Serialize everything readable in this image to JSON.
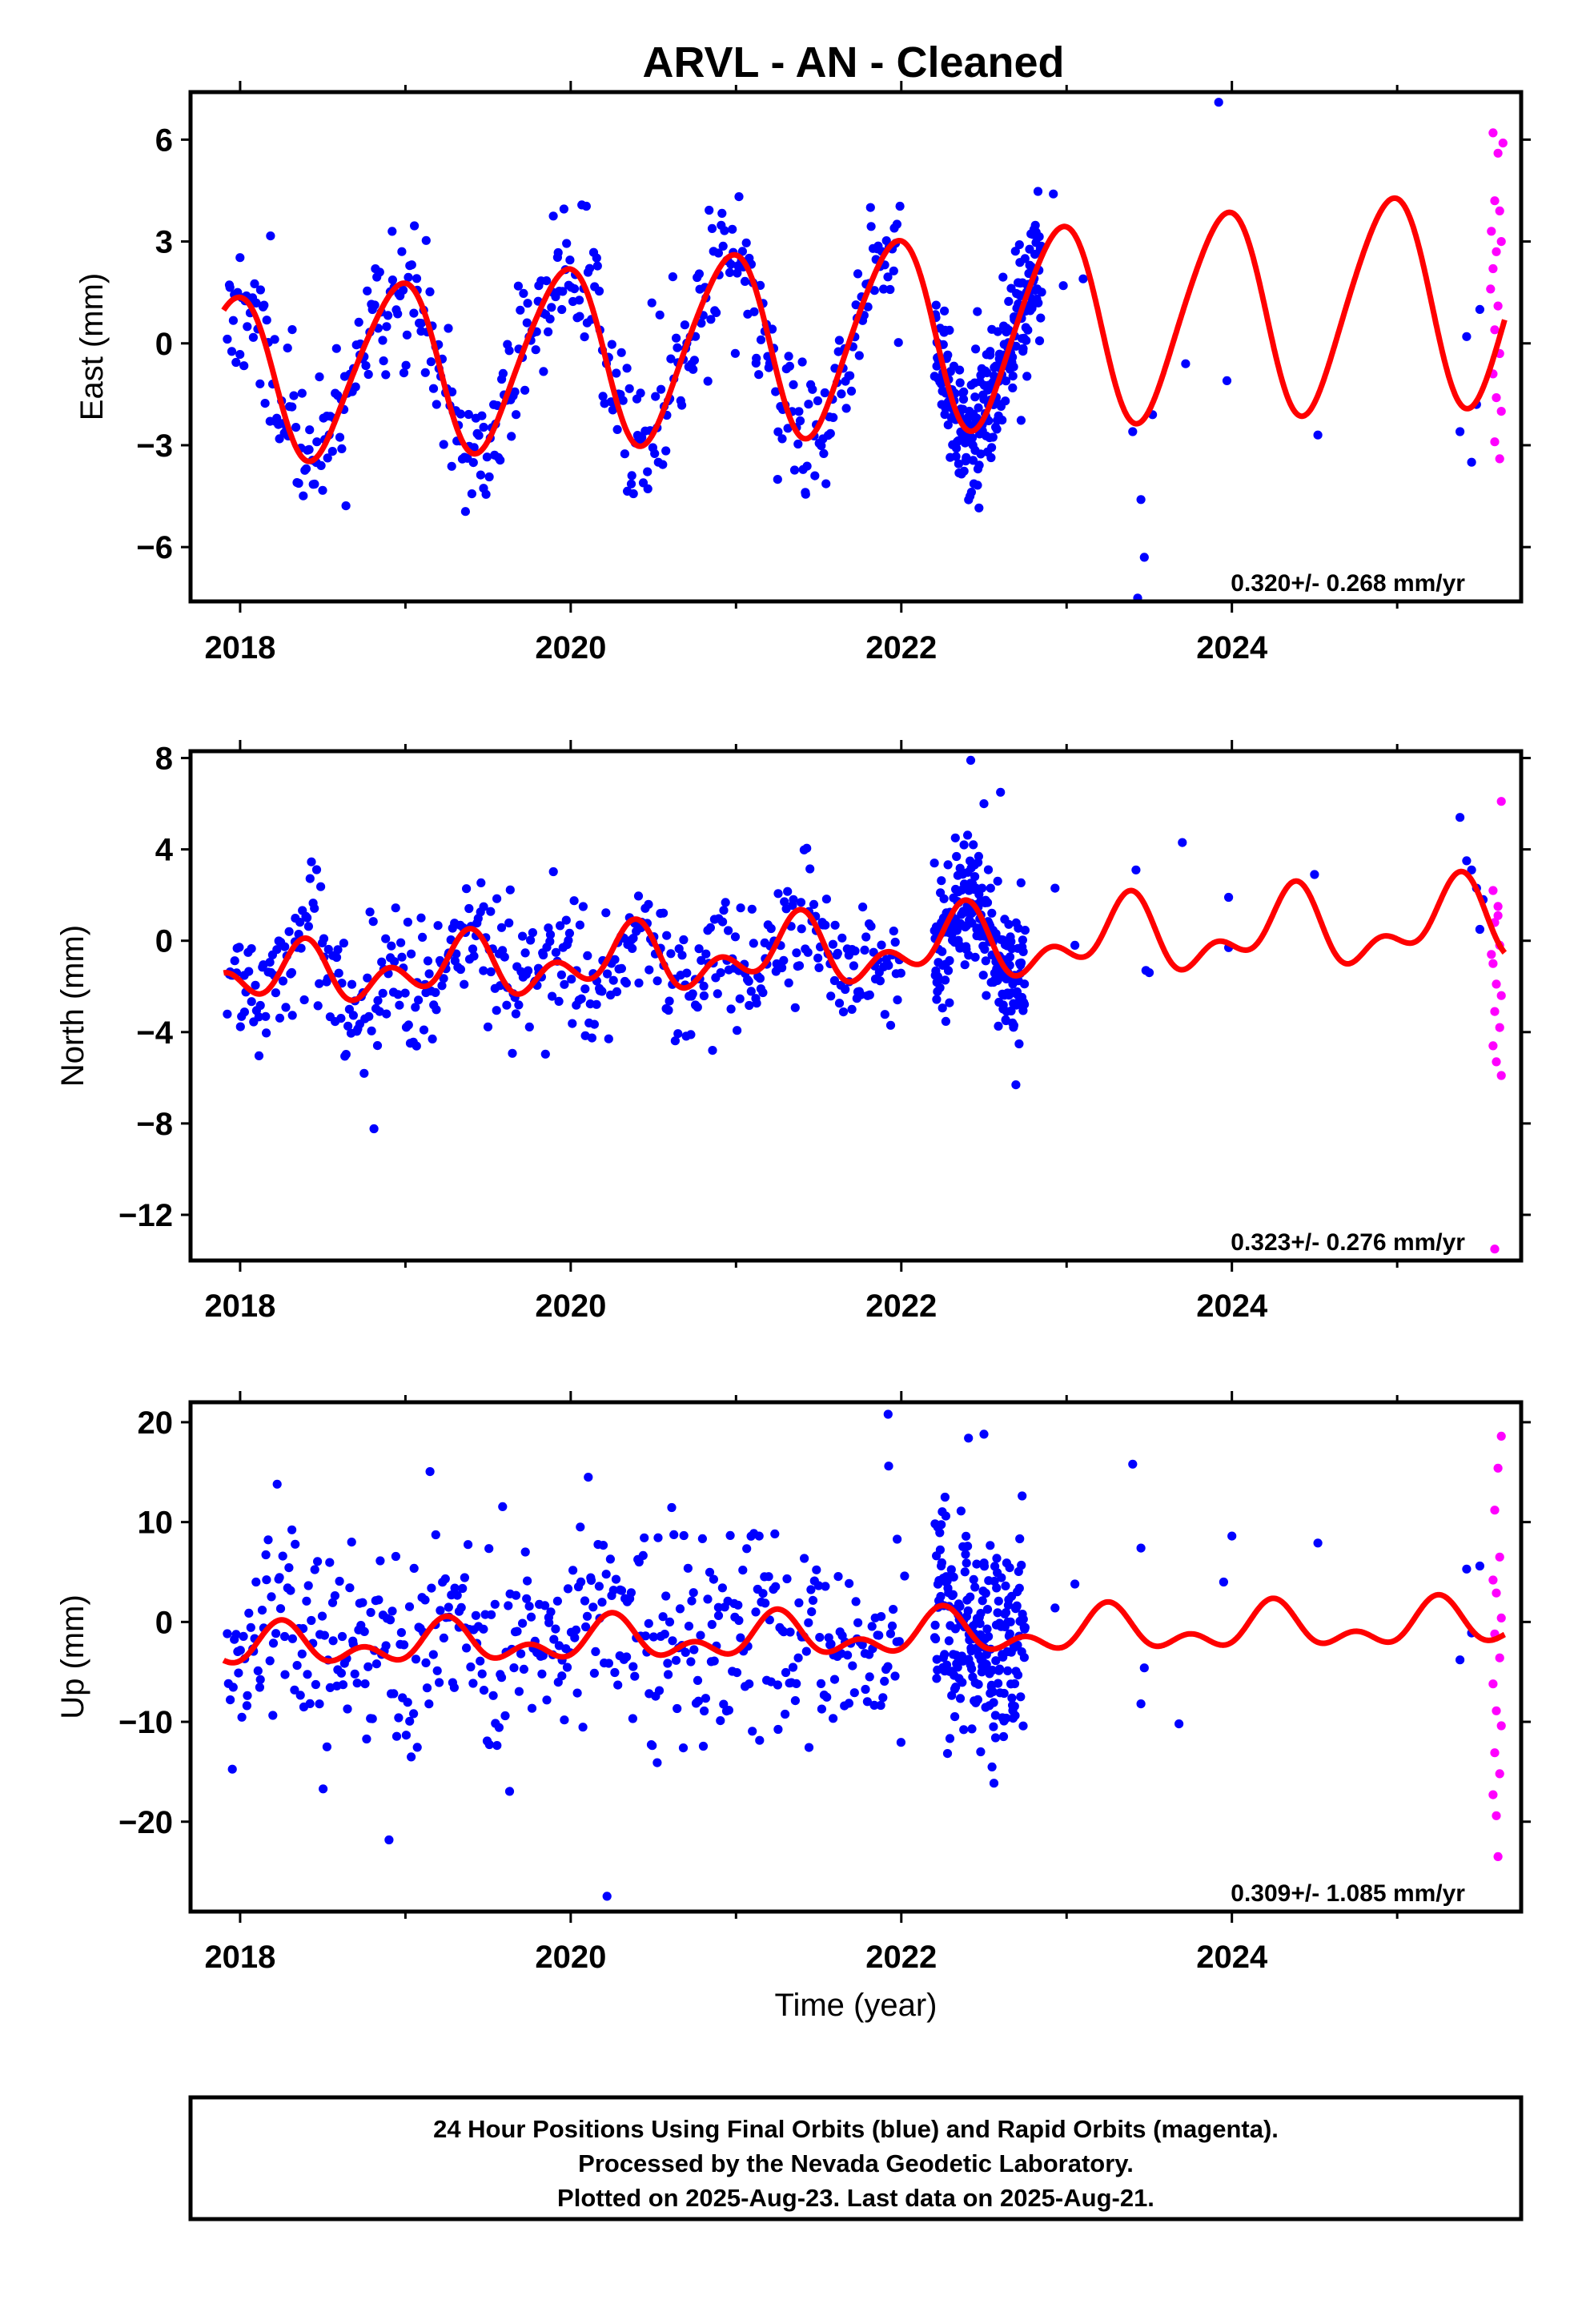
{
  "title": "ARVL  - AN - Cleaned",
  "xlabel": "Time (year)",
  "x_ticks": [
    "2018",
    "2020",
    "2022",
    "2024"
  ],
  "notes": [
    "24 Hour Positions Using Final Orbits (blue) and Rapid Orbits (magenta).",
    "Processed by the Nevada Geodetic Laboratory.",
    "Plotted on 2025-Aug-23. Last data on 2025-Aug-21."
  ],
  "colors": {
    "final": "#0000ff",
    "rapid": "#ff00ff",
    "model": "#ff0000",
    "frame": "#000000"
  },
  "chart_data": [
    {
      "type": "scatter",
      "ylabel": "East (mm)",
      "rate_text": "0.320+/- 0.268 mm/yr",
      "xlim": [
        2017.7,
        2025.75
      ],
      "ylim": [
        -7.6,
        7.4
      ],
      "y_ticks": [
        6,
        3,
        0,
        -3,
        -6
      ],
      "y_tick_labels": [
        "6",
        "3",
        "0",
        "−3",
        "−6"
      ],
      "model": {
        "offset": 0.1,
        "trend": 0.32,
        "annual_amp_start": 2.4,
        "annual_amp_growth": 0.1,
        "annual_phase_peak": 2018.95,
        "semi_amp": 0.3,
        "semi_phase_peak": 2018.1
      },
      "scatter": {
        "noise": 1.05,
        "outlier_rate": 0.01,
        "seed": 11
      },
      "final_segments": [
        [
          2017.92,
          2022.0,
          3.2
        ],
        [
          2022.2,
          2022.85,
          0.9
        ]
      ],
      "final_extra": [
        [
          2022.92,
          4.4
        ],
        [
          2022.98,
          1.7
        ],
        [
          2023.1,
          1.9
        ],
        [
          2023.4,
          -2.6
        ],
        [
          2023.45,
          -4.6
        ],
        [
          2023.47,
          -6.3
        ],
        [
          2023.43,
          -7.5
        ],
        [
          2023.52,
          -2.1
        ],
        [
          2023.72,
          -0.6
        ],
        [
          2023.92,
          7.1
        ],
        [
          2023.97,
          -1.1
        ],
        [
          2024.52,
          -2.7
        ],
        [
          2025.38,
          -2.6
        ],
        [
          2025.42,
          0.2
        ],
        [
          2025.45,
          -3.5
        ],
        [
          2025.48,
          -1.8
        ],
        [
          2025.5,
          1.0
        ]
      ],
      "rapid_points": [
        [
          2025.58,
          6.2
        ],
        [
          2025.61,
          5.6
        ],
        [
          2025.59,
          4.2
        ],
        [
          2025.62,
          3.9
        ],
        [
          2025.57,
          3.3
        ],
        [
          2025.6,
          2.7
        ],
        [
          2025.63,
          3.0
        ],
        [
          2025.58,
          2.2
        ],
        [
          2025.61,
          1.1
        ],
        [
          2025.59,
          0.4
        ],
        [
          2025.62,
          -0.3
        ],
        [
          2025.58,
          -0.9
        ],
        [
          2025.6,
          -1.6
        ],
        [
          2025.63,
          -2.0
        ],
        [
          2025.59,
          -2.9
        ],
        [
          2025.62,
          -3.4
        ],
        [
          2025.64,
          5.9
        ],
        [
          2025.565,
          1.6
        ]
      ]
    },
    {
      "type": "scatter",
      "ylabel": "North (mm)",
      "rate_text": "0.323+/- 0.276 mm/yr",
      "xlim": [
        2017.7,
        2025.75
      ],
      "ylim": [
        -14.0,
        8.3
      ],
      "y_ticks": [
        8,
        4,
        0,
        -4,
        -8,
        -12
      ],
      "y_tick_labels": [
        "8",
        "4",
        "0",
        "−4",
        "−8",
        "−12"
      ],
      "model": {
        "offset": -0.5,
        "trend": 0.32,
        "annual_amp_start": 0.7,
        "annual_amp_growth": 0.1,
        "annual_phase_peak": 2018.35,
        "semi_amp": 0.9,
        "semi_phase_peak": 2018.4
      },
      "scatter": {
        "noise": 1.4,
        "outlier_rate": 0.01,
        "seed": 23
      },
      "final_segments": [
        [
          2017.92,
          2022.0,
          3.2
        ],
        [
          2022.2,
          2022.75,
          0.9
        ]
      ],
      "final_extra": [
        [
          2022.2,
          3.4
        ],
        [
          2022.42,
          7.9
        ],
        [
          2022.5,
          6.0
        ],
        [
          2022.6,
          6.5
        ],
        [
          2022.93,
          2.3
        ],
        [
          2023.05,
          -0.2
        ],
        [
          2023.42,
          3.1
        ],
        [
          2023.48,
          -1.3
        ],
        [
          2023.5,
          -1.4
        ],
        [
          2023.7,
          4.3
        ],
        [
          2023.98,
          1.9
        ],
        [
          2023.98,
          -0.3
        ],
        [
          2024.5,
          2.9
        ],
        [
          2025.38,
          5.4
        ],
        [
          2025.42,
          3.5
        ],
        [
          2025.45,
          3.1
        ],
        [
          2025.48,
          2.3
        ],
        [
          2025.5,
          0.5
        ],
        [
          2025.52,
          1.8
        ]
      ],
      "rapid_points": [
        [
          2025.63,
          6.1
        ],
        [
          2025.58,
          2.2
        ],
        [
          2025.61,
          1.5
        ],
        [
          2025.59,
          0.8
        ],
        [
          2025.62,
          -0.2
        ],
        [
          2025.58,
          -1.0
        ],
        [
          2025.6,
          -1.9
        ],
        [
          2025.63,
          -2.4
        ],
        [
          2025.59,
          -3.1
        ],
        [
          2025.62,
          -3.8
        ],
        [
          2025.58,
          -4.6
        ],
        [
          2025.6,
          -5.3
        ],
        [
          2025.63,
          -5.9
        ],
        [
          2025.57,
          -0.6
        ],
        [
          2025.61,
          1.1
        ],
        [
          2025.59,
          -13.5
        ]
      ]
    },
    {
      "type": "scatter",
      "ylabel": "Up (mm)",
      "rate_text": "0.309+/- 1.085 mm/yr",
      "xlim": [
        2017.7,
        2025.75
      ],
      "ylim": [
        -29.0,
        22.0
      ],
      "y_ticks": [
        20,
        10,
        0,
        -10,
        -20
      ],
      "y_tick_labels": [
        "20",
        "10",
        "0",
        "−10",
        "−20"
      ],
      "model": {
        "offset": -1.5,
        "trend": 0.31,
        "annual_amp_start": 1.4,
        "annual_amp_growth": 0.05,
        "annual_phase_peak": 2018.25,
        "semi_amp": 1.3,
        "semi_phase_peak": 2018.25
      },
      "scatter": {
        "noise": 5.2,
        "outlier_rate": 0.02,
        "seed": 37
      },
      "final_segments": [
        [
          2017.92,
          2022.0,
          3.2
        ],
        [
          2022.2,
          2022.75,
          0.9
        ]
      ],
      "final_extra": [
        [
          2021.92,
          20.8
        ],
        [
          2022.02,
          4.6
        ],
        [
          2022.22,
          9.5
        ],
        [
          2022.5,
          18.8
        ],
        [
          2022.48,
          -13.0
        ],
        [
          2022.57,
          -11.6
        ],
        [
          2022.93,
          1.4
        ],
        [
          2023.05,
          3.8
        ],
        [
          2023.4,
          15.8
        ],
        [
          2023.45,
          7.4
        ],
        [
          2023.47,
          -4.6
        ],
        [
          2023.45,
          -8.2
        ],
        [
          2023.68,
          -10.2
        ],
        [
          2023.95,
          4.0
        ],
        [
          2024.0,
          8.6
        ],
        [
          2024.52,
          7.9
        ],
        [
          2025.38,
          -3.8
        ],
        [
          2025.42,
          5.3
        ],
        [
          2025.45,
          -1.1
        ],
        [
          2025.5,
          5.6
        ]
      ],
      "rapid_points": [
        [
          2025.63,
          18.6
        ],
        [
          2025.61,
          15.4
        ],
        [
          2025.59,
          11.2
        ],
        [
          2025.62,
          6.5
        ],
        [
          2025.58,
          4.2
        ],
        [
          2025.6,
          2.9
        ],
        [
          2025.63,
          0.4
        ],
        [
          2025.59,
          -1.2
        ],
        [
          2025.62,
          -3.6
        ],
        [
          2025.58,
          -6.2
        ],
        [
          2025.6,
          -8.9
        ],
        [
          2025.63,
          -10.4
        ],
        [
          2025.59,
          -13.1
        ],
        [
          2025.62,
          -15.2
        ],
        [
          2025.58,
          -17.3
        ],
        [
          2025.6,
          -19.4
        ],
        [
          2025.61,
          -23.5
        ]
      ]
    }
  ]
}
